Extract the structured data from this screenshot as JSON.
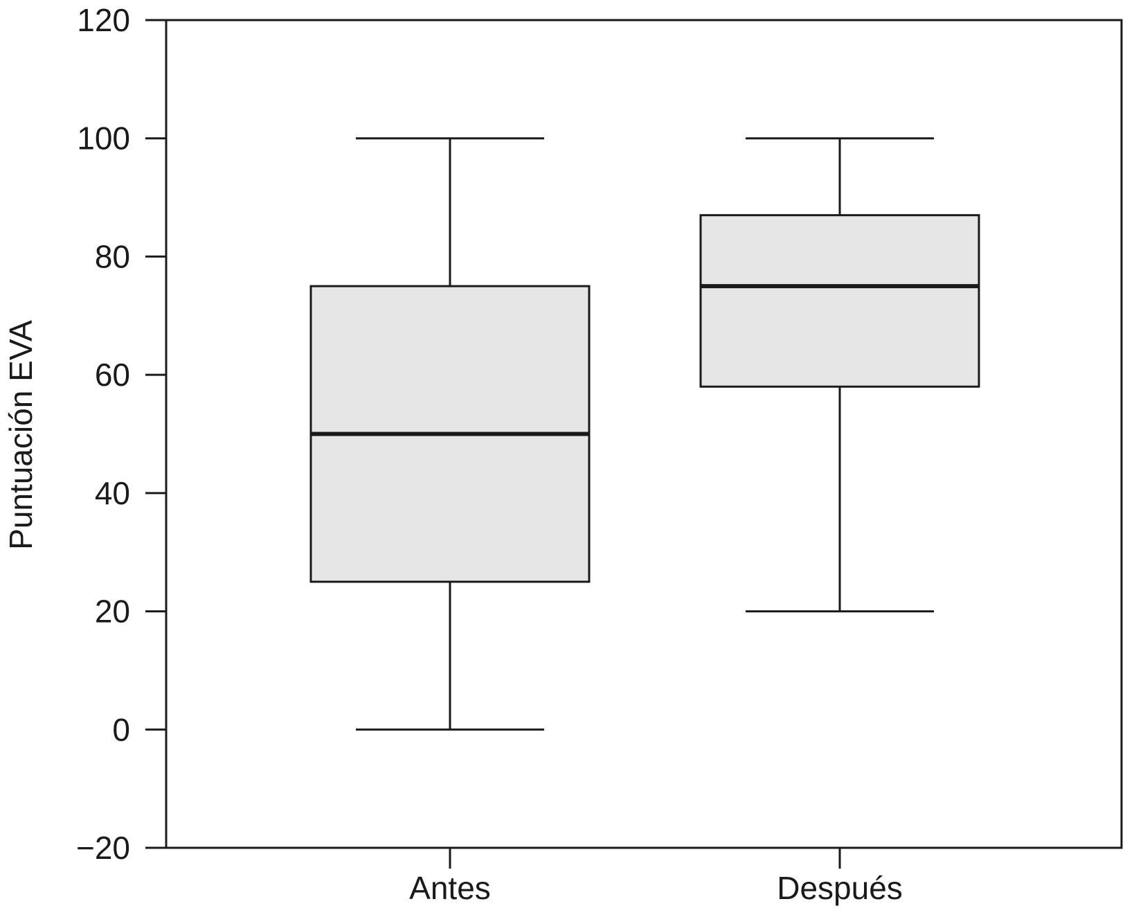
{
  "chart_data": {
    "type": "boxplot",
    "title": "",
    "xlabel": "",
    "ylabel": "Puntuación EVA",
    "ylim": [
      -20,
      120
    ],
    "yticks": [
      -20,
      0,
      20,
      40,
      60,
      80,
      100,
      120
    ],
    "ytick_labels": [
      "−20",
      "0",
      "20",
      "40",
      "60",
      "80",
      "100",
      "120"
    ],
    "categories": [
      "Antes",
      "Después"
    ],
    "boxes": [
      {
        "category": "Antes",
        "whisker_low": 0,
        "q1": 25,
        "median": 50,
        "q3": 75,
        "whisker_high": 100
      },
      {
        "category": "Después",
        "whisker_low": 20,
        "q1": 58,
        "median": 75,
        "q3": 87,
        "whisker_high": 100
      }
    ],
    "grid": false,
    "colors": {
      "box_fill": "#e6e6e6",
      "stroke": "#1a1a1a"
    }
  }
}
